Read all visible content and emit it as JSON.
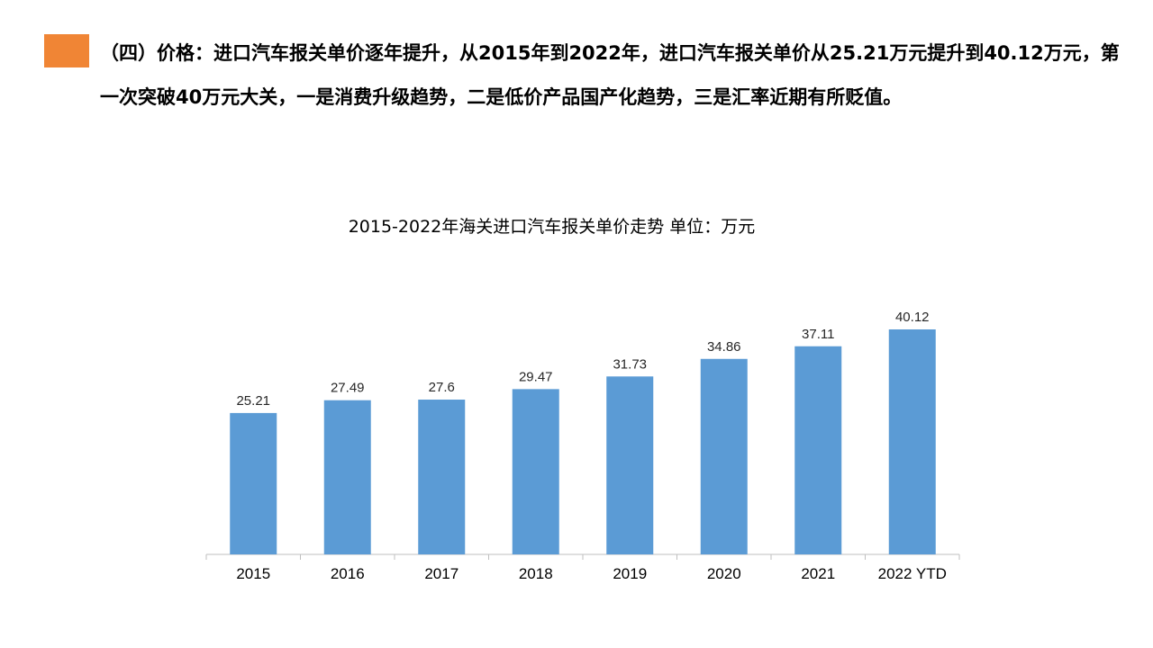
{
  "header": {
    "accent_color": "#F08535",
    "text": "（四）价格：进口汽车报关单价逐年提升，从2015年到2022年，进口汽车报关单价从25.21万元提升到40.12万元，第一次突破40万元大关，一是消费升级趋势，二是低价产品国产化趋势，三是汇率近期有所贬值。"
  },
  "chart_data": {
    "type": "bar",
    "title": "2015-2022年海关进口汽车报关单价走势 单位：万元",
    "categories": [
      "2015",
      "2016",
      "2017",
      "2018",
      "2019",
      "2020",
      "2021",
      "2022 YTD"
    ],
    "values": [
      25.21,
      27.49,
      27.6,
      29.47,
      31.73,
      34.86,
      37.11,
      40.12
    ],
    "value_labels": [
      "25.21",
      "27.49",
      "27.6",
      "29.47",
      "31.73",
      "34.86",
      "37.11",
      "40.12"
    ],
    "bar_color": "#5B9BD5",
    "ylim": [
      0,
      45
    ],
    "grid": false,
    "legend": "none",
    "xlabel": "",
    "ylabel": ""
  }
}
